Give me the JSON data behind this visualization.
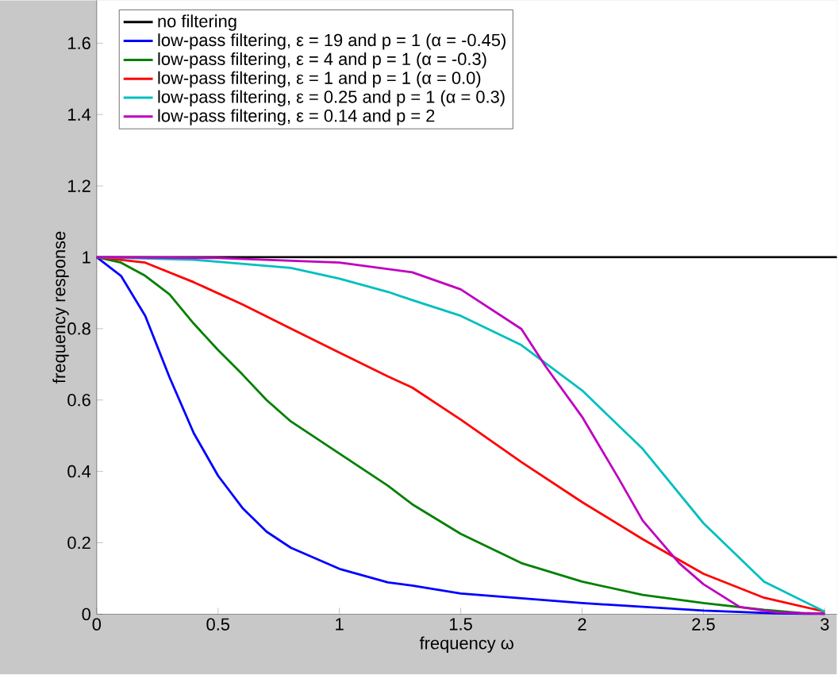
{
  "chart_data": {
    "type": "line",
    "xlabel": "frequency ω",
    "ylabel": "frequency response",
    "xlim": [
      0,
      3.05
    ],
    "ylim": [
      0,
      1.72
    ],
    "xticks": [
      0,
      0.5,
      1,
      1.5,
      2,
      2.5,
      3
    ],
    "yticks": [
      0,
      0.2,
      0.4,
      0.6,
      0.8,
      1,
      1.2,
      1.4,
      1.6
    ],
    "grid": false,
    "legend": "top left",
    "marker": "none",
    "line_style": "solid",
    "series": [
      {
        "name": "no filtering",
        "color": "#000000",
        "x": [
          0,
          3.05
        ],
        "values": [
          1,
          1
        ]
      },
      {
        "name": "low-pass filtering, ε = 19 and p = 1 (α = -0.45)",
        "color": "#0000ff",
        "x": [
          0,
          0.1,
          0.2,
          0.3,
          0.4,
          0.5,
          0.6,
          0.7,
          0.8,
          1.0,
          1.2,
          1.3,
          1.5,
          2,
          2.5,
          2.8,
          3
        ],
        "values": [
          1,
          0.948,
          0.836,
          0.664,
          0.507,
          0.388,
          0.298,
          0.231,
          0.186,
          0.127,
          0.089,
          0.08,
          0.058,
          0.031,
          0.01,
          0.002,
          0.001
        ]
      },
      {
        "name": "low-pass filtering, ε = 4 and p = 1 (α = -0.3)",
        "color": "#008000",
        "x": [
          0,
          0.1,
          0.2,
          0.3,
          0.4,
          0.5,
          0.6,
          0.7,
          0.8,
          1.0,
          1.2,
          1.3,
          1.5,
          1.75,
          2,
          2.25,
          2.5,
          2.75,
          2.9,
          3
        ],
        "values": [
          1,
          0.985,
          0.948,
          0.896,
          0.814,
          0.74,
          0.672,
          0.6,
          0.54,
          0.45,
          0.36,
          0.308,
          0.225,
          0.143,
          0.091,
          0.054,
          0.031,
          0.012,
          0.003,
          0.001
        ]
      },
      {
        "name": "low-pass filtering, ε = 1 and p = 1 (α = 0.0)",
        "color": "#ff0000",
        "x": [
          0,
          0.2,
          0.4,
          0.6,
          0.8,
          1.0,
          1.2,
          1.3,
          1.5,
          1.75,
          2,
          2.25,
          2.5,
          2.75,
          3
        ],
        "values": [
          1,
          0.985,
          0.93,
          0.868,
          0.8,
          0.733,
          0.666,
          0.635,
          0.545,
          0.426,
          0.314,
          0.21,
          0.113,
          0.046,
          0.007
        ]
      },
      {
        "name": "low-pass filtering, ε = 0.25 and p = 1 (α = 0.3)",
        "color": "#00bfbf",
        "x": [
          0,
          0.4,
          0.8,
          1.0,
          1.2,
          1.3,
          1.5,
          1.75,
          2,
          2.25,
          2.5,
          2.75,
          3
        ],
        "values": [
          1,
          0.993,
          0.97,
          0.94,
          0.903,
          0.88,
          0.836,
          0.754,
          0.627,
          0.463,
          0.255,
          0.091,
          0.007
        ]
      },
      {
        "name": "low-pass filtering, ε = 0.14 and p = 2",
        "color": "#bf00bf",
        "x": [
          0,
          0.5,
          1.0,
          1.3,
          1.5,
          1.75,
          1.85,
          2,
          2.15,
          2.25,
          2.4,
          2.5,
          2.65,
          2.8,
          3
        ],
        "values": [
          1,
          0.998,
          0.985,
          0.958,
          0.91,
          0.799,
          0.694,
          0.553,
          0.381,
          0.262,
          0.143,
          0.084,
          0.02,
          0.005,
          0.001
        ]
      }
    ]
  }
}
